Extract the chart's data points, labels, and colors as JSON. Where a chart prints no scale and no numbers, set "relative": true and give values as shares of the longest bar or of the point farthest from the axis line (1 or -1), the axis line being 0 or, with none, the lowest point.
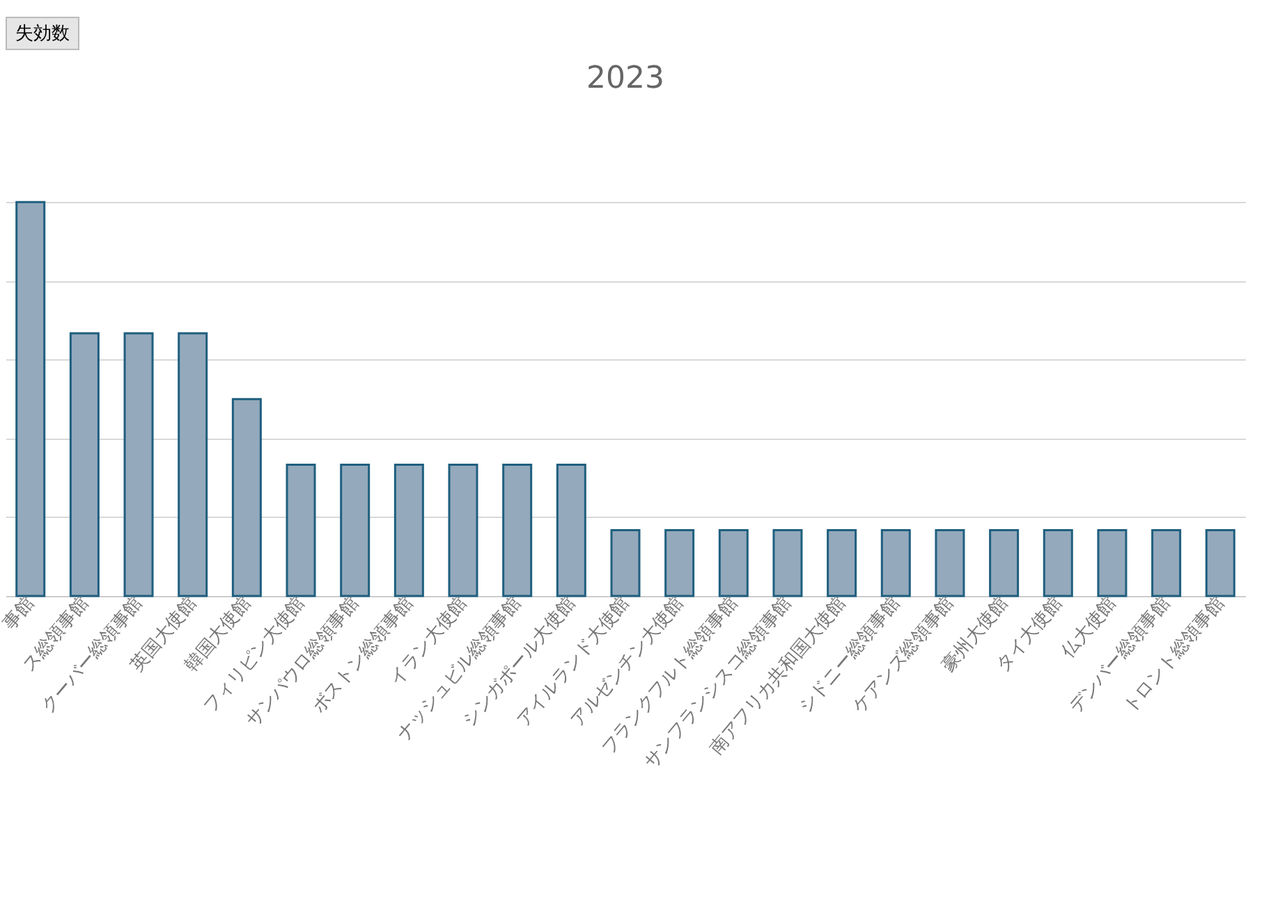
{
  "chart_data": {
    "type": "bar",
    "title": "2023",
    "annotations": [
      "失効数"
    ],
    "relative": true,
    "grid": true,
    "color": "#94a9bc",
    "categories": [
      "事館",
      "ス総領事館",
      "クーバー総領事館",
      "英国大使館",
      "韓国大使館",
      "フィリピン大使館",
      "サンパウロ総領事館",
      "ボストン総領事館",
      "イラン大使館",
      "ナッシュビル総領事館",
      "シンガポール大使館",
      "アイルランド大使館",
      "アルゼンチン大使館",
      "フランクフルト総領事館",
      "サンフランシスコ総領事館",
      "南アフリカ共和国大使館",
      "シドニー総領事館",
      "ケアンズ総領事館",
      "豪州大使館",
      "タイ大使館",
      "仏大使館",
      "デンバー総領事館",
      "トロント総領事館"
    ],
    "values": [
      1,
      0.667,
      0.667,
      0.667,
      0.5,
      0.333,
      0.333,
      0.333,
      0.333,
      0.333,
      0.333,
      0.167,
      0.167,
      0.167,
      0.167,
      0.167,
      0.167,
      0.167,
      0.167,
      0.167,
      0.167,
      0.167,
      0.167
    ]
  }
}
